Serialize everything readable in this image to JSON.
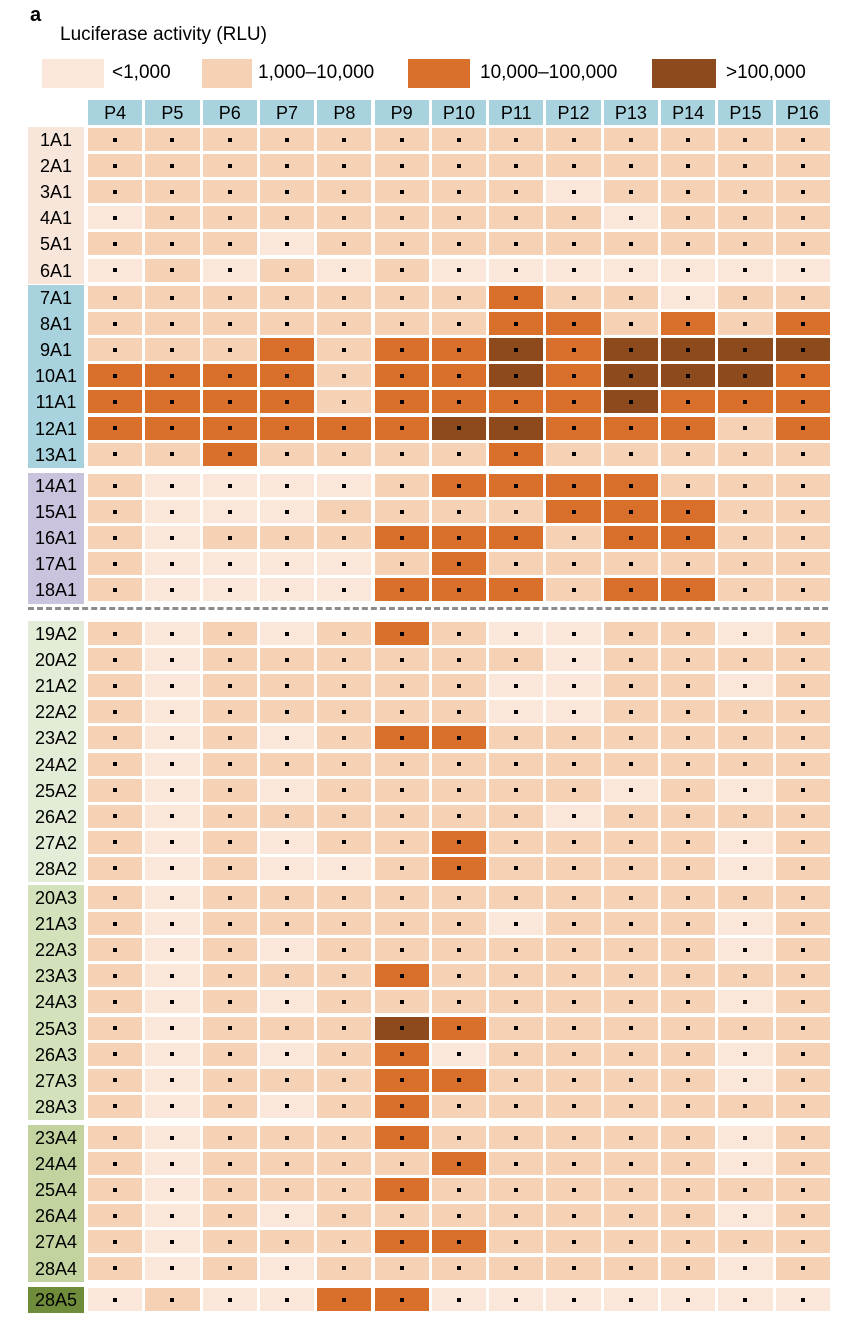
{
  "panel_label": "a",
  "chart_data": {
    "type": "heatmap",
    "title": "Luciferase activity (RLU)",
    "legend_placement": "top",
    "legend": [
      {
        "label": "<1,000",
        "level": 0,
        "color": "#fbe7da"
      },
      {
        "label": "1,000–10,000",
        "level": 1,
        "color": "#f5d2b5"
      },
      {
        "label": "10,000–100,000",
        "level": 2,
        "color": "#d8702b"
      },
      {
        "label": ">100,000",
        "level": 3,
        "color": "#8d4a1c"
      }
    ],
    "columns": [
      "P4",
      "P5",
      "P6",
      "P7",
      "P8",
      "P9",
      "P10",
      "P11",
      "P12",
      "P13",
      "P14",
      "P15",
      "P16"
    ],
    "groups": [
      {
        "color": "#f9e6db",
        "rows": [
          {
            "label": "1A1",
            "values": [
              1,
              1,
              1,
              1,
              1,
              1,
              1,
              1,
              1,
              1,
              1,
              1,
              1
            ]
          },
          {
            "label": "2A1",
            "values": [
              1,
              1,
              1,
              1,
              1,
              1,
              1,
              1,
              1,
              1,
              1,
              1,
              1
            ]
          },
          {
            "label": "3A1",
            "values": [
              1,
              1,
              1,
              1,
              1,
              1,
              1,
              1,
              0,
              1,
              1,
              1,
              1
            ]
          },
          {
            "label": "4A1",
            "values": [
              0,
              1,
              1,
              1,
              1,
              1,
              1,
              1,
              1,
              0,
              1,
              1,
              1
            ]
          },
          {
            "label": "5A1",
            "values": [
              1,
              1,
              1,
              0,
              1,
              1,
              1,
              1,
              1,
              1,
              1,
              1,
              1
            ]
          },
          {
            "label": "6A1",
            "values": [
              0,
              1,
              0,
              1,
              0,
              1,
              0,
              0,
              0,
              0,
              0,
              0,
              0
            ]
          }
        ]
      },
      {
        "color": "#a8d3de",
        "rows": [
          {
            "label": "7A1",
            "values": [
              1,
              1,
              1,
              1,
              1,
              1,
              1,
              2,
              1,
              1,
              0,
              1,
              1
            ]
          },
          {
            "label": "8A1",
            "values": [
              1,
              1,
              1,
              1,
              1,
              1,
              1,
              2,
              2,
              1,
              2,
              1,
              2
            ]
          },
          {
            "label": "9A1",
            "values": [
              1,
              1,
              1,
              2,
              1,
              2,
              2,
              3,
              2,
              3,
              3,
              3,
              3
            ]
          },
          {
            "label": "10A1",
            "values": [
              2,
              2,
              2,
              2,
              1,
              2,
              2,
              3,
              2,
              3,
              3,
              3,
              2
            ]
          },
          {
            "label": "11A1",
            "values": [
              2,
              2,
              2,
              2,
              1,
              2,
              2,
              2,
              2,
              3,
              2,
              2,
              2
            ]
          },
          {
            "label": "12A1",
            "values": [
              2,
              2,
              2,
              2,
              2,
              2,
              3,
              3,
              2,
              2,
              2,
              1,
              2
            ]
          },
          {
            "label": "13A1",
            "values": [
              1,
              1,
              2,
              1,
              1,
              1,
              1,
              2,
              1,
              1,
              1,
              1,
              1
            ]
          }
        ]
      },
      {
        "color": "#c9c3dd",
        "rows": [
          {
            "label": "14A1",
            "values": [
              1,
              0,
              0,
              0,
              0,
              1,
              2,
              2,
              2,
              2,
              1,
              1,
              1
            ]
          },
          {
            "label": "15A1",
            "values": [
              1,
              0,
              0,
              0,
              1,
              1,
              1,
              1,
              2,
              2,
              2,
              1,
              1
            ]
          },
          {
            "label": "16A1",
            "values": [
              1,
              0,
              1,
              1,
              1,
              2,
              2,
              2,
              1,
              2,
              2,
              1,
              1
            ]
          },
          {
            "label": "17A1",
            "values": [
              1,
              0,
              0,
              0,
              0,
              1,
              2,
              1,
              1,
              1,
              1,
              1,
              1
            ]
          },
          {
            "label": "18A1",
            "values": [
              1,
              0,
              0,
              0,
              0,
              2,
              2,
              2,
              1,
              2,
              2,
              1,
              1
            ]
          }
        ]
      },
      {
        "color": "#e3ecd6",
        "rows": [
          {
            "label": "19A2",
            "values": [
              1,
              0,
              1,
              0,
              1,
              2,
              1,
              0,
              0,
              1,
              1,
              0,
              1
            ]
          },
          {
            "label": "20A2",
            "values": [
              1,
              0,
              1,
              1,
              1,
              1,
              1,
              1,
              0,
              1,
              1,
              1,
              1
            ]
          },
          {
            "label": "21A2",
            "values": [
              1,
              0,
              1,
              1,
              1,
              1,
              1,
              0,
              0,
              1,
              1,
              0,
              1
            ]
          },
          {
            "label": "22A2",
            "values": [
              1,
              0,
              1,
              1,
              1,
              1,
              1,
              0,
              0,
              1,
              1,
              1,
              1
            ]
          },
          {
            "label": "23A2",
            "values": [
              1,
              0,
              1,
              0,
              1,
              2,
              2,
              1,
              1,
              1,
              1,
              1,
              1
            ]
          },
          {
            "label": "24A2",
            "values": [
              1,
              0,
              1,
              1,
              1,
              1,
              1,
              1,
              1,
              1,
              1,
              1,
              1
            ]
          },
          {
            "label": "25A2",
            "values": [
              1,
              0,
              1,
              0,
              1,
              1,
              1,
              1,
              1,
              0,
              1,
              0,
              1
            ]
          },
          {
            "label": "26A2",
            "values": [
              1,
              0,
              1,
              1,
              1,
              1,
              1,
              1,
              0,
              1,
              1,
              1,
              1
            ]
          },
          {
            "label": "27A2",
            "values": [
              1,
              0,
              1,
              0,
              1,
              1,
              2,
              1,
              1,
              1,
              1,
              0,
              1
            ]
          },
          {
            "label": "28A2",
            "values": [
              1,
              0,
              1,
              0,
              0,
              1,
              2,
              1,
              1,
              1,
              1,
              0,
              1
            ]
          }
        ]
      },
      {
        "color": "#d4e2bc",
        "rows": [
          {
            "label": "20A3",
            "values": [
              1,
              0,
              1,
              1,
              1,
              1,
              1,
              1,
              1,
              1,
              1,
              1,
              1
            ]
          },
          {
            "label": "21A3",
            "values": [
              1,
              0,
              1,
              1,
              1,
              1,
              1,
              0,
              1,
              1,
              1,
              0,
              1
            ]
          },
          {
            "label": "22A3",
            "values": [
              1,
              0,
              1,
              0,
              1,
              1,
              1,
              1,
              1,
              1,
              1,
              0,
              1
            ]
          },
          {
            "label": "23A3",
            "values": [
              1,
              0,
              1,
              1,
              1,
              2,
              1,
              1,
              1,
              1,
              1,
              1,
              1
            ]
          },
          {
            "label": "24A3",
            "values": [
              1,
              0,
              1,
              0,
              1,
              1,
              1,
              1,
              1,
              1,
              1,
              0,
              1
            ]
          },
          {
            "label": "25A3",
            "values": [
              1,
              0,
              1,
              1,
              1,
              3,
              2,
              1,
              1,
              1,
              1,
              1,
              1
            ]
          },
          {
            "label": "26A3",
            "values": [
              1,
              0,
              1,
              0,
              1,
              2,
              0,
              1,
              1,
              1,
              1,
              0,
              1
            ]
          },
          {
            "label": "27A3",
            "values": [
              1,
              0,
              1,
              1,
              1,
              2,
              2,
              1,
              1,
              1,
              1,
              0,
              1
            ]
          },
          {
            "label": "28A3",
            "values": [
              1,
              0,
              1,
              0,
              1,
              2,
              1,
              1,
              1,
              1,
              1,
              1,
              1
            ]
          }
        ]
      },
      {
        "color": "#c2d39f",
        "rows": [
          {
            "label": "23A4",
            "values": [
              1,
              0,
              1,
              1,
              1,
              2,
              1,
              1,
              1,
              1,
              1,
              0,
              1
            ]
          },
          {
            "label": "24A4",
            "values": [
              1,
              0,
              1,
              1,
              1,
              1,
              2,
              1,
              1,
              1,
              1,
              0,
              1
            ]
          },
          {
            "label": "25A4",
            "values": [
              1,
              0,
              1,
              1,
              1,
              2,
              1,
              1,
              1,
              1,
              1,
              1,
              1
            ]
          },
          {
            "label": "26A4",
            "values": [
              1,
              0,
              1,
              0,
              1,
              1,
              1,
              1,
              1,
              1,
              1,
              0,
              1
            ]
          },
          {
            "label": "27A4",
            "values": [
              1,
              0,
              1,
              1,
              1,
              2,
              2,
              1,
              1,
              1,
              1,
              1,
              1
            ]
          },
          {
            "label": "28A4",
            "values": [
              1,
              0,
              1,
              0,
              1,
              1,
              1,
              1,
              1,
              1,
              1,
              0,
              1
            ]
          }
        ]
      },
      {
        "color": "#6f8c3a",
        "rows": [
          {
            "label": "28A5",
            "values": [
              0,
              1,
              0,
              0,
              2,
              2,
              0,
              0,
              0,
              0,
              0,
              0,
              0
            ]
          }
        ]
      }
    ]
  }
}
